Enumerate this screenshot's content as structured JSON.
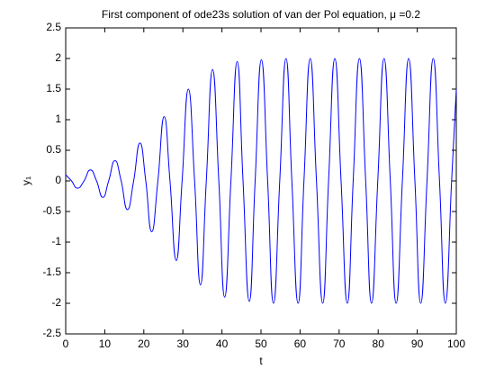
{
  "chart_data": {
    "type": "line",
    "title": "First component of ode23s solution of van der Pol equation, μ =0.2",
    "xlabel": "t",
    "ylabel": "y₁",
    "color": "#0000ff",
    "x": [
      0,
      1.5,
      3,
      4.7,
      6.3,
      7.9,
      9.5,
      11,
      12.6,
      14.2,
      15.8,
      17.4,
      19,
      20.5,
      22,
      23.6,
      25.2,
      26.7,
      28.3,
      29.8,
      31.4,
      33,
      34.5,
      36,
      37.6,
      39.2,
      40.7,
      42.3,
      43.9,
      45.4,
      47,
      48.5,
      50.1,
      51.7,
      53.2,
      54.8,
      56.4,
      57.9,
      59.5,
      61,
      62.6,
      64.2,
      65.8,
      67.3,
      68.9,
      70.5,
      72.1,
      73.6,
      75.2,
      76.8,
      78.3,
      79.9,
      81.5,
      83.1,
      84.6,
      86.2,
      87.8,
      89.4,
      90.9,
      92.5,
      94.1,
      95.7,
      97.2,
      98.8,
      100
    ],
    "values": [
      0.1,
      0,
      -0.12,
      0,
      0.18,
      0,
      -0.27,
      0,
      0.33,
      0,
      -0.47,
      0,
      0.62,
      0,
      -0.83,
      0,
      1.05,
      0,
      -1.3,
      0,
      1.5,
      0,
      -1.7,
      0,
      1.82,
      0,
      -1.9,
      0,
      1.95,
      0,
      -1.97,
      0,
      1.98,
      0,
      -2,
      0,
      2,
      0,
      -2,
      0,
      2,
      0,
      -2,
      0,
      2,
      0,
      -2,
      0,
      2,
      0,
      -2,
      0,
      2,
      0,
      -2,
      0,
      2,
      0,
      -2,
      0,
      2,
      0,
      -2,
      0,
      1.5
    ],
    "xlim": [
      0,
      100
    ],
    "xticks": [
      0,
      10,
      20,
      30,
      40,
      50,
      60,
      70,
      80,
      90,
      100
    ],
    "ylim": [
      -2.5,
      2.5
    ],
    "yticks": [
      -2.5,
      -2,
      -1.5,
      -1,
      -0.5,
      0,
      0.5,
      1,
      1.5,
      2,
      2.5
    ]
  }
}
